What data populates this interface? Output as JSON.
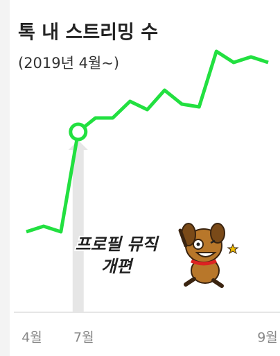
{
  "chart_data": {
    "type": "line",
    "title": "톡 내 스트리밍 수",
    "subtitle": "(2019년 4월~)",
    "categories": [
      "4월",
      null,
      null,
      "7월",
      null,
      null,
      null,
      null,
      null,
      null,
      null,
      null,
      null,
      null,
      "9월"
    ],
    "series": [
      {
        "color": "#22e040",
        "values": [
          29,
          31,
          29,
          65,
          70,
          70,
          76,
          73,
          80,
          75,
          74,
          94,
          90,
          92,
          90
        ]
      }
    ],
    "ylim": [
      0,
      100
    ],
    "highlight": 3,
    "annotation": [
      "프로필 뮤직",
      "개편"
    ]
  }
}
